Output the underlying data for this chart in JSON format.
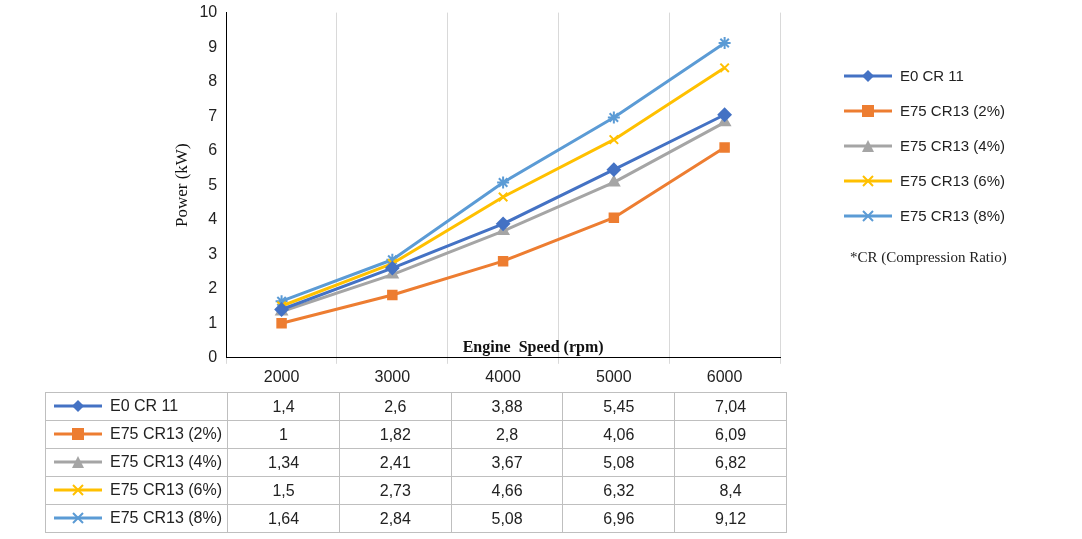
{
  "chart_data": {
    "type": "line",
    "xlabel": "Engine  Speed (rpm)",
    "ylabel": "Power (kW)",
    "categories": [
      "2000",
      "3000",
      "4000",
      "5000",
      "6000"
    ],
    "ylim": [
      0,
      10
    ],
    "yticks": [
      0,
      1,
      2,
      3,
      4,
      5,
      6,
      7,
      8,
      9,
      10
    ],
    "grid": "x",
    "legend": "right",
    "series": [
      {
        "name": "E0 CR 11",
        "color": "#4472c4",
        "marker": "diamond",
        "values": [
          1.4,
          2.6,
          3.88,
          5.45,
          7.04
        ],
        "value_labels": [
          "1,4",
          "2,6",
          "3,88",
          "5,45",
          "7,04"
        ]
      },
      {
        "name": "E75 CR13 (2%)",
        "color": "#ed7d31",
        "marker": "square",
        "values": [
          1,
          1.82,
          2.8,
          4.06,
          6.09
        ],
        "value_labels": [
          "1",
          "1,82",
          "2,8",
          "4,06",
          "6,09"
        ]
      },
      {
        "name": "E75 CR13 (4%)",
        "color": "#a5a5a5",
        "marker": "triangle",
        "values": [
          1.34,
          2.41,
          3.67,
          5.08,
          6.82
        ],
        "value_labels": [
          "1,34",
          "2,41",
          "3,67",
          "5,08",
          "6,82"
        ]
      },
      {
        "name": "E75 CR13 (6%)",
        "color": "#ffc000",
        "marker": "cross",
        "values": [
          1.5,
          2.73,
          4.66,
          6.32,
          8.4
        ],
        "value_labels": [
          "1,5",
          "2,73",
          "4,66",
          "6,32",
          "8,4"
        ]
      },
      {
        "name": "E75 CR13 (8%)",
        "color": "#5b9bd5",
        "marker": "cross",
        "values": [
          1.64,
          2.84,
          5.08,
          6.96,
          9.12
        ],
        "value_labels": [
          "1,64",
          "2,84",
          "5,08",
          "6,96",
          "9,12"
        ]
      }
    ],
    "annotations": [
      "*CR (Compression Ratio)"
    ]
  }
}
